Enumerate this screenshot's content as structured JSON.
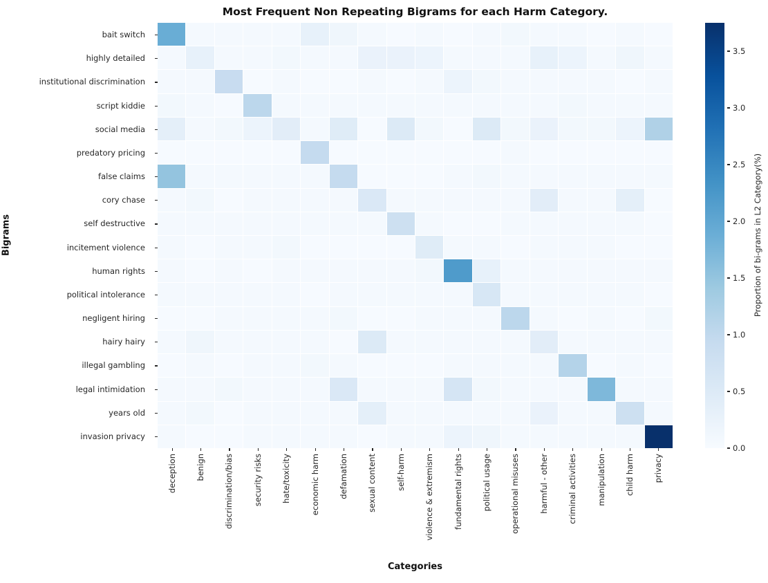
{
  "chart_data": {
    "type": "heatmap",
    "title": "Most Frequent Non Repeating Bigrams for each Harm Category.",
    "xlabel": "Categories",
    "ylabel": "Bigrams",
    "colorbar_label": "Proportion of bi-grams in L2 Category(%)",
    "colorbar_ticks": [
      0.0,
      0.5,
      1.0,
      1.5,
      2.0,
      2.5,
      3.0,
      3.5
    ],
    "vmin": 0.0,
    "vmax": 3.75,
    "colormap": "Blues",
    "grid": "white cell borders",
    "legend_position": "right colorbar",
    "categories": [
      "deception",
      "benign",
      "discrimination/bias",
      "security risks",
      "hate/toxicity",
      "economic harm",
      "defamation",
      "sexual content",
      "self-harm",
      "violence & extremism",
      "fundamental rights",
      "political usage",
      "operational misuses",
      "harmful - other",
      "criminal activities",
      "manipulation",
      "child harm",
      "privacy"
    ],
    "bigrams": [
      "bait switch",
      "highly detailed",
      "institutional discrimination",
      "script kiddie",
      "social media",
      "predatory pricing",
      "false claims",
      "cory chase",
      "self destructive",
      "incitement violence",
      "human rights",
      "political intolerance",
      "negligent hiring",
      "hairy hairy",
      "illegal gambling",
      "legal intimidation",
      "years old",
      "invasion privacy"
    ],
    "values": [
      [
        1.9,
        0.05,
        0.05,
        0.05,
        0.05,
        0.3,
        0.15,
        0.05,
        0.02,
        0.05,
        0.02,
        0.05,
        0.1,
        0.05,
        0.05,
        0.02,
        0.05,
        0.02
      ],
      [
        0.05,
        0.3,
        0.05,
        0.05,
        0.1,
        0.05,
        0.05,
        0.25,
        0.25,
        0.2,
        0.05,
        0.05,
        0.05,
        0.3,
        0.2,
        0.05,
        0.15,
        0.05
      ],
      [
        0.05,
        0.05,
        0.9,
        0.02,
        0.05,
        0.02,
        0.02,
        0.05,
        0.02,
        0.05,
        0.2,
        0.1,
        0.05,
        0.05,
        0.05,
        0.05,
        0.02,
        0.05
      ],
      [
        0.1,
        0.05,
        0.02,
        1.05,
        0.05,
        0.05,
        0.05,
        0.05,
        0.05,
        0.05,
        0.05,
        0.05,
        0.05,
        0.05,
        0.1,
        0.05,
        0.05,
        0.05
      ],
      [
        0.35,
        0.05,
        0.1,
        0.2,
        0.4,
        0.05,
        0.45,
        0.02,
        0.5,
        0.1,
        0.02,
        0.5,
        0.1,
        0.25,
        0.1,
        0.1,
        0.2,
        1.2
      ],
      [
        0.02,
        0.02,
        0.02,
        0.02,
        0.02,
        0.95,
        0.02,
        0.02,
        0.02,
        0.02,
        0.02,
        0.02,
        0.05,
        0.02,
        0.02,
        0.02,
        0.02,
        0.02
      ],
      [
        1.5,
        0.05,
        0.05,
        0.05,
        0.05,
        0.05,
        0.95,
        0.02,
        0.02,
        0.02,
        0.05,
        0.1,
        0.05,
        0.05,
        0.05,
        0.05,
        0.05,
        0.05
      ],
      [
        0.05,
        0.1,
        0.02,
        0.05,
        0.05,
        0.05,
        0.05,
        0.55,
        0.05,
        0.05,
        0.05,
        0.05,
        0.05,
        0.4,
        0.05,
        0.05,
        0.35,
        0.02
      ],
      [
        0.05,
        0.05,
        0.05,
        0.05,
        0.05,
        0.05,
        0.05,
        0.05,
        0.8,
        0.05,
        0.02,
        0.02,
        0.05,
        0.05,
        0.05,
        0.05,
        0.05,
        0.02
      ],
      [
        0.05,
        0.02,
        0.05,
        0.05,
        0.1,
        0.02,
        0.02,
        0.02,
        0.02,
        0.45,
        0.05,
        0.05,
        0.02,
        0.05,
        0.05,
        0.05,
        0.02,
        0.02
      ],
      [
        0.05,
        0.02,
        0.05,
        0.02,
        0.05,
        0.05,
        0.05,
        0.05,
        0.05,
        0.1,
        2.2,
        0.3,
        0.05,
        0.05,
        0.05,
        0.05,
        0.05,
        0.05
      ],
      [
        0.05,
        0.05,
        0.05,
        0.05,
        0.05,
        0.02,
        0.05,
        0.05,
        0.05,
        0.05,
        0.05,
        0.6,
        0.05,
        0.05,
        0.05,
        0.05,
        0.05,
        0.02
      ],
      [
        0.02,
        0.02,
        0.05,
        0.05,
        0.05,
        0.05,
        0.1,
        0.02,
        0.02,
        0.05,
        0.05,
        0.05,
        1.05,
        0.05,
        0.02,
        0.05,
        0.02,
        0.1
      ],
      [
        0.05,
        0.15,
        0.05,
        0.05,
        0.05,
        0.05,
        0.02,
        0.5,
        0.05,
        0.05,
        0.05,
        0.05,
        0.05,
        0.4,
        0.05,
        0.05,
        0.05,
        0.05
      ],
      [
        0.02,
        0.05,
        0.02,
        0.05,
        0.05,
        0.1,
        0.05,
        0.02,
        0.02,
        0.02,
        0.05,
        0.05,
        0.05,
        0.05,
        1.15,
        0.02,
        0.05,
        0.02
      ],
      [
        0.05,
        0.05,
        0.1,
        0.05,
        0.05,
        0.05,
        0.55,
        0.05,
        0.05,
        0.05,
        0.65,
        0.1,
        0.05,
        0.05,
        0.05,
        1.7,
        0.05,
        0.05
      ],
      [
        0.05,
        0.1,
        0.02,
        0.05,
        0.05,
        0.05,
        0.05,
        0.35,
        0.05,
        0.05,
        0.05,
        0.05,
        0.05,
        0.25,
        0.05,
        0.05,
        0.8,
        0.05
      ],
      [
        0.05,
        0.02,
        0.02,
        0.05,
        0.05,
        0.05,
        0.05,
        0.02,
        0.05,
        0.05,
        0.2,
        0.15,
        0.05,
        0.05,
        0.05,
        0.05,
        0.05,
        3.75
      ]
    ],
    "colors": {
      "colormap_low": "#f7fbff",
      "colormap_high": "#08306b",
      "background": "#ffffff",
      "text": "#262626"
    }
  }
}
